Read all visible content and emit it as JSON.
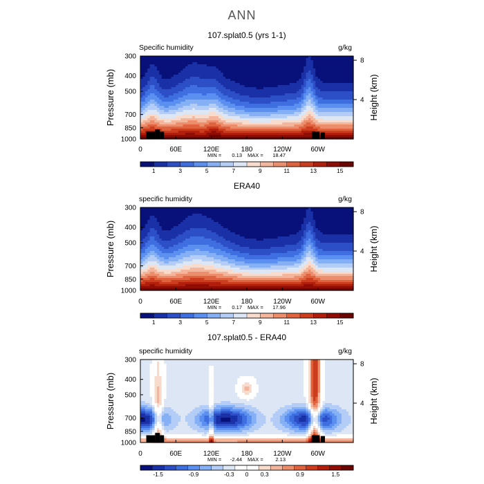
{
  "page_title": "ANN",
  "chart_data": [
    {
      "type": "heatmap",
      "title": "107.splat0.5 (yrs 1-1)",
      "left_label": "Specific humidity",
      "units": "g/kg",
      "ylabel": "Pressure (mb)",
      "ylabel_right": "Height (km)",
      "x_ticks": [
        "0",
        "60E",
        "120E",
        "180",
        "120W",
        "60W"
      ],
      "x_tick_values": [
        0,
        60,
        120,
        180,
        240,
        300
      ],
      "xlim": [
        0,
        360
      ],
      "y_ticks": [
        "300",
        "400",
        "500",
        "700",
        "850",
        "1000"
      ],
      "y_tick_values": [
        300,
        400,
        500,
        700,
        850,
        1000
      ],
      "ylim": [
        1000,
        300
      ],
      "height_ticks": [
        "8",
        "4"
      ],
      "height_tick_values": [
        8,
        4
      ],
      "min_label": "MIN =",
      "min_value": "0.13",
      "max_label": "MAX =",
      "max_value": "18.47",
      "colorbar_labels": [
        "1",
        "3",
        "5",
        "7",
        "9",
        "11",
        "13",
        "15"
      ],
      "colorbar_levels": [
        1,
        3,
        5,
        7,
        9,
        11,
        13,
        15
      ],
      "colorbar_range": [
        0,
        16
      ],
      "field": "humidity",
      "topography": true
    },
    {
      "type": "heatmap",
      "title": "ERA40",
      "left_label": "specific humidity",
      "units": "g/kg",
      "ylabel": "Pressure (mb)",
      "ylabel_right": "Height (km)",
      "x_ticks": [
        "0",
        "60E",
        "120E",
        "180",
        "120W",
        "60W"
      ],
      "x_tick_values": [
        0,
        60,
        120,
        180,
        240,
        300
      ],
      "xlim": [
        0,
        360
      ],
      "y_ticks": [
        "300",
        "400",
        "500",
        "700",
        "850",
        "1000"
      ],
      "y_tick_values": [
        300,
        400,
        500,
        700,
        850,
        1000
      ],
      "ylim": [
        1000,
        300
      ],
      "height_ticks": [
        "8",
        "4"
      ],
      "height_tick_values": [
        8,
        4
      ],
      "min_label": "MIN =",
      "min_value": "0.17",
      "max_label": "MAX =",
      "max_value": "17.96",
      "colorbar_labels": [
        "1",
        "3",
        "5",
        "7",
        "9",
        "11",
        "13",
        "15"
      ],
      "colorbar_levels": [
        1,
        3,
        5,
        7,
        9,
        11,
        13,
        15
      ],
      "colorbar_range": [
        0,
        16
      ],
      "field": "humidity",
      "topography": false
    },
    {
      "type": "heatmap",
      "title": "107.splat0.5 - ERA40",
      "left_label": "specific humidity",
      "units": "g/kg",
      "ylabel": "Pressure (mb)",
      "ylabel_right": "Height (km)",
      "x_ticks": [
        "0",
        "60E",
        "120E",
        "180",
        "120W",
        "60W"
      ],
      "x_tick_values": [
        0,
        60,
        120,
        180,
        240,
        300
      ],
      "xlim": [
        0,
        360
      ],
      "y_ticks": [
        "300",
        "400",
        "500",
        "700",
        "850",
        "1000"
      ],
      "y_tick_values": [
        300,
        400,
        500,
        700,
        850,
        1000
      ],
      "ylim": [
        1000,
        300
      ],
      "height_ticks": [
        "8",
        "4"
      ],
      "height_tick_values": [
        8,
        4
      ],
      "min_label": "MIN =",
      "min_value": "-2.44",
      "max_label": "MAX =",
      "max_value": "2.13",
      "colorbar_labels": [
        "-1.5",
        "-0.9",
        "-0.3",
        "0",
        "0.3",
        "0.9",
        "1.5"
      ],
      "colorbar_levels": [
        -1.5,
        -0.9,
        -0.3,
        0,
        0.3,
        0.9,
        1.5
      ],
      "colorbar_range": [
        -1.8,
        1.8
      ],
      "field": "difference",
      "topography": true
    }
  ],
  "colors": {
    "humidity_scale": [
      "#08117a",
      "#1a30a6",
      "#2c4fc7",
      "#3e6ee0",
      "#5b8ff0",
      "#86b0f5",
      "#b3cdf7",
      "#dde6f5",
      "#f7dccd",
      "#f3b69c",
      "#ec8d6c",
      "#e0633f",
      "#cc3d1e",
      "#b11e0c",
      "#8f0d05",
      "#6a0501"
    ],
    "difference_scale": [
      "#08117a",
      "#1a30a6",
      "#2c4fc7",
      "#3e6ee0",
      "#5b8ff0",
      "#86b0f5",
      "#b3cdf7",
      "#dde6f5",
      "#ffffff",
      "#ffffff",
      "#f7dccd",
      "#f3b69c",
      "#ec8d6c",
      "#e0633f",
      "#cc3d1e",
      "#b11e0c",
      "#8f0d05",
      "#6a0501"
    ],
    "topography": "#000000"
  }
}
